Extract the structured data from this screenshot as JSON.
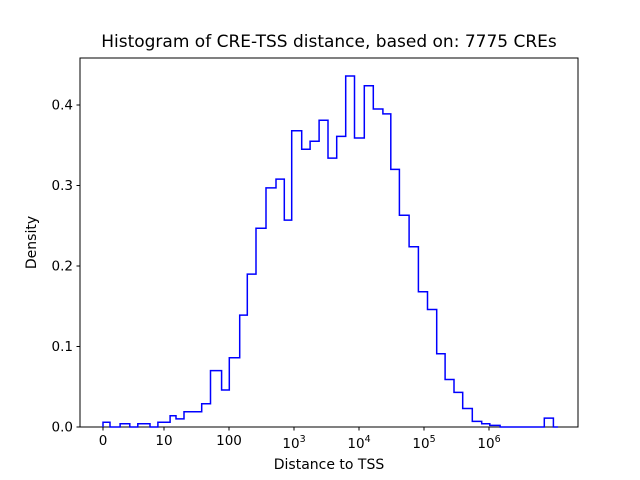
{
  "chart_data": {
    "type": "histogram-step",
    "title": "Histogram of CRE-TSS distance, based on: 7775 CREs",
    "xlabel": "Distance to TSS",
    "ylabel": "Density",
    "n_samples_in_title": "7775",
    "line_color": "#0000ff",
    "axis_color": "#000000",
    "background_color": "#ffffff",
    "grid": false,
    "legend": null,
    "x_scale": "symlog",
    "x_linear_region": [
      0,
      10
    ],
    "ylim": [
      0.0,
      0.458
    ],
    "y_ticks": [
      {
        "value": 0.0,
        "label": "0.0"
      },
      {
        "value": 0.1,
        "label": "0.1"
      },
      {
        "value": 0.2,
        "label": "0.2"
      },
      {
        "value": 0.3,
        "label": "0.3"
      },
      {
        "value": 0.4,
        "label": "0.4"
      }
    ],
    "x_ticks": [
      {
        "value": 0,
        "label": "0"
      },
      {
        "value": 10,
        "label": "10"
      },
      {
        "value": 100,
        "label": "100"
      },
      {
        "value": 1000,
        "label": "10^3"
      },
      {
        "value": 10000,
        "label": "10^4"
      },
      {
        "value": 100000,
        "label": "10^5"
      },
      {
        "value": 1000000,
        "label": "10^6"
      }
    ],
    "bins_format": [
      "edge_lo_bp",
      "edge_hi_bp",
      "density"
    ],
    "bins": [
      [
        0,
        1.15,
        0.006
      ],
      [
        1.15,
        2.8,
        0.0
      ],
      [
        2.8,
        4.4,
        0.004
      ],
      [
        4.4,
        5.7,
        0.0
      ],
      [
        5.7,
        7.7,
        0.004
      ],
      [
        7.7,
        9.0,
        0.0
      ],
      [
        9.0,
        12.4,
        0.006
      ],
      [
        12.4,
        15.3,
        0.014
      ],
      [
        15.3,
        20.3,
        0.01
      ],
      [
        20.3,
        38,
        0.019
      ],
      [
        38,
        52,
        0.029
      ],
      [
        52,
        77,
        0.07
      ],
      [
        77,
        101,
        0.046
      ],
      [
        101,
        146,
        0.086
      ],
      [
        146,
        191,
        0.139
      ],
      [
        191,
        260,
        0.19
      ],
      [
        260,
        371,
        0.247
      ],
      [
        371,
        529,
        0.297
      ],
      [
        529,
        710,
        0.308
      ],
      [
        710,
        923,
        0.257
      ],
      [
        923,
        1313,
        0.368
      ],
      [
        1313,
        1771,
        0.345
      ],
      [
        1771,
        2431,
        0.355
      ],
      [
        2431,
        3337,
        0.381
      ],
      [
        3337,
        4541,
        0.334
      ],
      [
        4541,
        6232,
        0.361
      ],
      [
        6232,
        8513,
        0.436
      ],
      [
        8513,
        12080,
        0.359
      ],
      [
        12080,
        16600,
        0.424
      ],
      [
        16600,
        23300,
        0.395
      ],
      [
        23300,
        30900,
        0.389
      ],
      [
        30900,
        41800,
        0.32
      ],
      [
        41800,
        58900,
        0.263
      ],
      [
        58900,
        82100,
        0.224
      ],
      [
        82100,
        113000,
        0.168
      ],
      [
        113000,
        157000,
        0.146
      ],
      [
        157000,
        211000,
        0.091
      ],
      [
        211000,
        289000,
        0.059
      ],
      [
        289000,
        394000,
        0.043
      ],
      [
        394000,
        553000,
        0.023
      ],
      [
        553000,
        771000,
        0.007
      ],
      [
        771000,
        1030000,
        0.004
      ],
      [
        1030000,
        1480000,
        0.002
      ],
      [
        1480000,
        7100000,
        0.0
      ],
      [
        7100000,
        9800000,
        0.011
      ],
      [
        9800000,
        11500000,
        0.0
      ]
    ]
  }
}
